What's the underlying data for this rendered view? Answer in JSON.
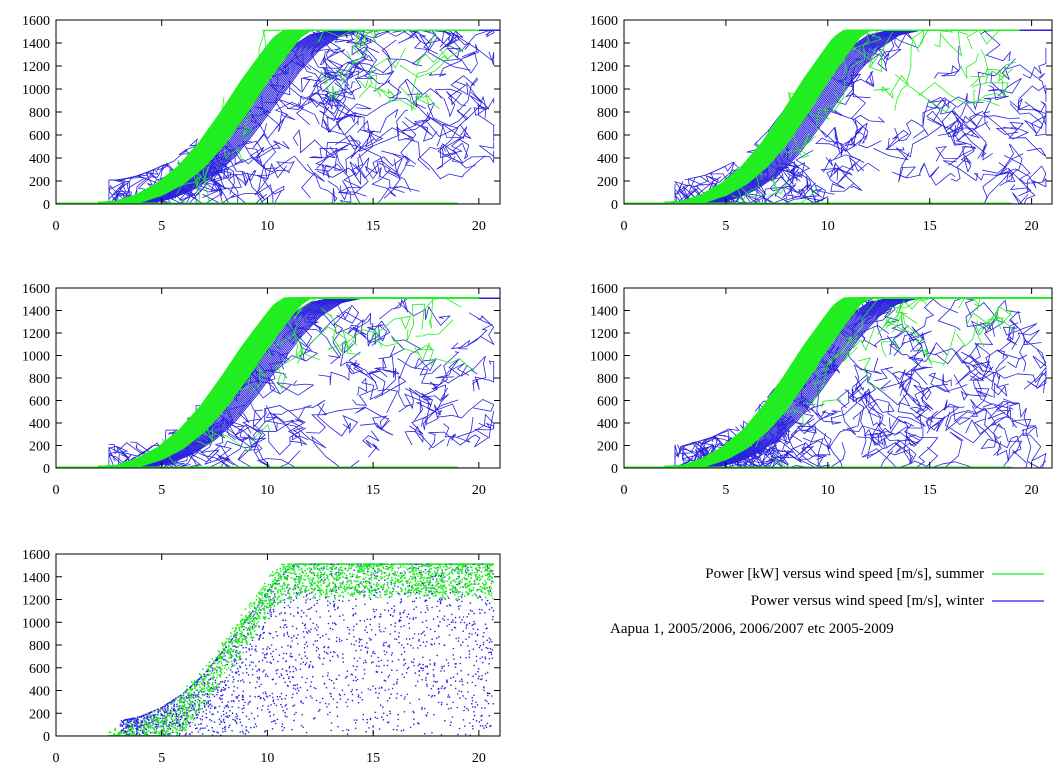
{
  "colors": {
    "summer": "#22ee22",
    "winter": "#2a22dd",
    "frame": "#000000"
  },
  "legend": {
    "summer_label": "Power [kW] versus wind speed [m/s], summer",
    "winter_label": "Power versus wind speed [m/s], winter",
    "caption": "Aapua 1, 2005/2006, 2006/2007 etc  2005-2009"
  },
  "chart_data": [
    {
      "type": "line",
      "panel": "top-left",
      "xlim": [
        0,
        21
      ],
      "ylim": [
        0,
        1600
      ],
      "xticks": [
        0,
        5,
        10,
        15,
        20
      ],
      "yticks": [
        0,
        200,
        400,
        600,
        800,
        1000,
        1200,
        1400,
        1600
      ],
      "series": [
        {
          "key": "summer",
          "power_curve": [
            [
              0,
              0
            ],
            [
              3,
              20
            ],
            [
              4,
              80
            ],
            [
              5,
              180
            ],
            [
              6,
              330
            ],
            [
              7,
              540
            ],
            [
              8,
              800
            ],
            [
              9,
              1080
            ],
            [
              10,
              1330
            ],
            [
              10.5,
              1450
            ],
            [
              11,
              1510
            ],
            [
              20,
              1510
            ]
          ]
        },
        {
          "key": "winter",
          "power_curve": [
            [
              0,
              0
            ],
            [
              3,
              10
            ],
            [
              4,
              50
            ],
            [
              5,
              130
            ],
            [
              6,
              250
            ],
            [
              7,
              420
            ],
            [
              8,
              650
            ],
            [
              9,
              900
            ],
            [
              10,
              1150
            ],
            [
              11,
              1350
            ],
            [
              12,
              1470
            ],
            [
              13,
              1510
            ],
            [
              20,
              1510
            ]
          ],
          "scatter": "high"
        }
      ]
    },
    {
      "type": "line",
      "panel": "top-right",
      "xlim": [
        0,
        21
      ],
      "ylim": [
        0,
        1600
      ],
      "xticks": [
        0,
        5,
        10,
        15,
        20
      ],
      "yticks": [
        0,
        200,
        400,
        600,
        800,
        1000,
        1200,
        1400,
        1600
      ],
      "series": [
        {
          "key": "summer",
          "power_curve": [
            [
              0,
              0
            ],
            [
              3,
              20
            ],
            [
              4,
              80
            ],
            [
              5,
              180
            ],
            [
              6,
              330
            ],
            [
              7,
              540
            ],
            [
              8,
              800
            ],
            [
              9,
              1080
            ],
            [
              10,
              1330
            ],
            [
              10.5,
              1450
            ],
            [
              11,
              1510
            ],
            [
              19.5,
              1510
            ]
          ]
        },
        {
          "key": "winter",
          "power_curve": [
            [
              0,
              0
            ],
            [
              3,
              10
            ],
            [
              4,
              50
            ],
            [
              5,
              130
            ],
            [
              6,
              250
            ],
            [
              7,
              420
            ],
            [
              8,
              650
            ],
            [
              9,
              900
            ],
            [
              10,
              1150
            ],
            [
              11,
              1350
            ],
            [
              12,
              1470
            ],
            [
              13,
              1510
            ],
            [
              19.5,
              1510
            ]
          ],
          "scatter": "medium"
        }
      ]
    },
    {
      "type": "line",
      "panel": "middle-left",
      "xlim": [
        0,
        21
      ],
      "ylim": [
        0,
        1600
      ],
      "xticks": [
        0,
        5,
        10,
        15,
        20
      ],
      "yticks": [
        0,
        200,
        400,
        600,
        800,
        1000,
        1200,
        1400,
        1600
      ],
      "series": [
        {
          "key": "summer",
          "power_curve": [
            [
              0,
              0
            ],
            [
              3,
              20
            ],
            [
              4,
              80
            ],
            [
              5,
              180
            ],
            [
              6,
              330
            ],
            [
              7,
              540
            ],
            [
              8,
              800
            ],
            [
              9,
              1080
            ],
            [
              10,
              1330
            ],
            [
              10.5,
              1450
            ],
            [
              11,
              1510
            ],
            [
              20,
              1510
            ]
          ]
        },
        {
          "key": "winter",
          "power_curve": [
            [
              0,
              0
            ],
            [
              3,
              10
            ],
            [
              4,
              50
            ],
            [
              5,
              130
            ],
            [
              6,
              250
            ],
            [
              7,
              420
            ],
            [
              8,
              650
            ],
            [
              9,
              900
            ],
            [
              10,
              1150
            ],
            [
              11,
              1350
            ],
            [
              12,
              1470
            ],
            [
              13,
              1510
            ],
            [
              20,
              1510
            ]
          ],
          "scatter": "medium"
        }
      ]
    },
    {
      "type": "line",
      "panel": "middle-right",
      "xlim": [
        0,
        21
      ],
      "ylim": [
        0,
        1600
      ],
      "xticks": [
        0,
        5,
        10,
        15,
        20
      ],
      "yticks": [
        0,
        200,
        400,
        600,
        800,
        1000,
        1200,
        1400,
        1600
      ],
      "series": [
        {
          "key": "summer",
          "power_curve": [
            [
              0,
              0
            ],
            [
              3,
              20
            ],
            [
              4,
              80
            ],
            [
              5,
              180
            ],
            [
              6,
              330
            ],
            [
              7,
              540
            ],
            [
              8,
              800
            ],
            [
              9,
              1080
            ],
            [
              10,
              1330
            ],
            [
              10.5,
              1450
            ],
            [
              11,
              1510
            ],
            [
              21,
              1510
            ]
          ]
        },
        {
          "key": "winter",
          "power_curve": [
            [
              0,
              0
            ],
            [
              3,
              10
            ],
            [
              4,
              50
            ],
            [
              5,
              130
            ],
            [
              6,
              250
            ],
            [
              7,
              420
            ],
            [
              8,
              650
            ],
            [
              9,
              900
            ],
            [
              10,
              1150
            ],
            [
              11,
              1350
            ],
            [
              12,
              1470
            ],
            [
              13,
              1510
            ],
            [
              21,
              1510
            ]
          ],
          "scatter": "high"
        }
      ]
    },
    {
      "type": "scatter",
      "panel": "bottom-left",
      "xlim": [
        0,
        21
      ],
      "ylim": [
        0,
        1600
      ],
      "xticks": [
        0,
        5,
        10,
        15,
        20
      ],
      "yticks": [
        0,
        200,
        400,
        600,
        800,
        1000,
        1200,
        1400,
        1600
      ],
      "series": [
        {
          "key": "summer",
          "power_curve": [
            [
              0,
              0
            ],
            [
              3,
              20
            ],
            [
              4,
              80
            ],
            [
              5,
              180
            ],
            [
              6,
              330
            ],
            [
              7,
              540
            ],
            [
              8,
              800
            ],
            [
              9,
              1080
            ],
            [
              10,
              1330
            ],
            [
              10.5,
              1450
            ],
            [
              11,
              1510
            ],
            [
              20.5,
              1510
            ]
          ]
        },
        {
          "key": "winter",
          "power_curve": [
            [
              0,
              0
            ],
            [
              3,
              10
            ],
            [
              4,
              50
            ],
            [
              5,
              130
            ],
            [
              6,
              250
            ],
            [
              7,
              420
            ],
            [
              8,
              650
            ],
            [
              9,
              900
            ],
            [
              10,
              1150
            ],
            [
              11,
              1350
            ],
            [
              12,
              1470
            ],
            [
              13,
              1510
            ],
            [
              20.5,
              1510
            ]
          ],
          "scatter": "high"
        }
      ]
    }
  ]
}
